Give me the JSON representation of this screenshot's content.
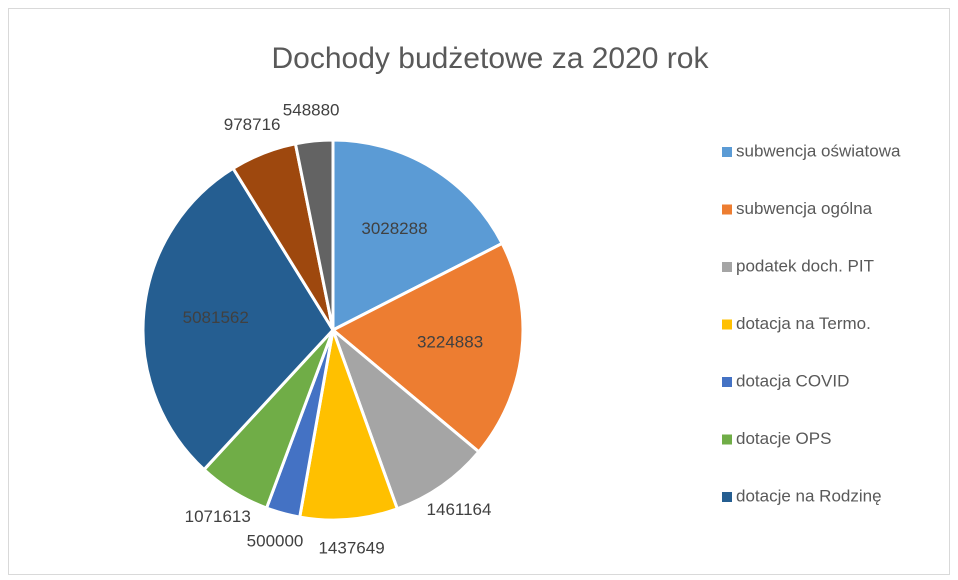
{
  "chart_data": {
    "type": "pie",
    "title": "Dochody budżetowe za 2020 rok",
    "categories": [
      "subwencja oświatowa",
      "subwencja ogólna",
      "podatek doch. PIT",
      "dotacja na Termo.",
      "dotacja COVID",
      "dotacje OPS",
      "dotacje na Rodzinę",
      null,
      null
    ],
    "values": [
      3028288,
      3224883,
      1461164,
      1437649,
      500000,
      1071613,
      5081562,
      978716,
      548880
    ],
    "colors": [
      "#5b9bd5",
      "#ed7d31",
      "#a5a5a5",
      "#ffc000",
      "#4472c4",
      "#70ad47",
      "#255e91",
      "#9e480e",
      "#636363"
    ],
    "legend": "right"
  }
}
